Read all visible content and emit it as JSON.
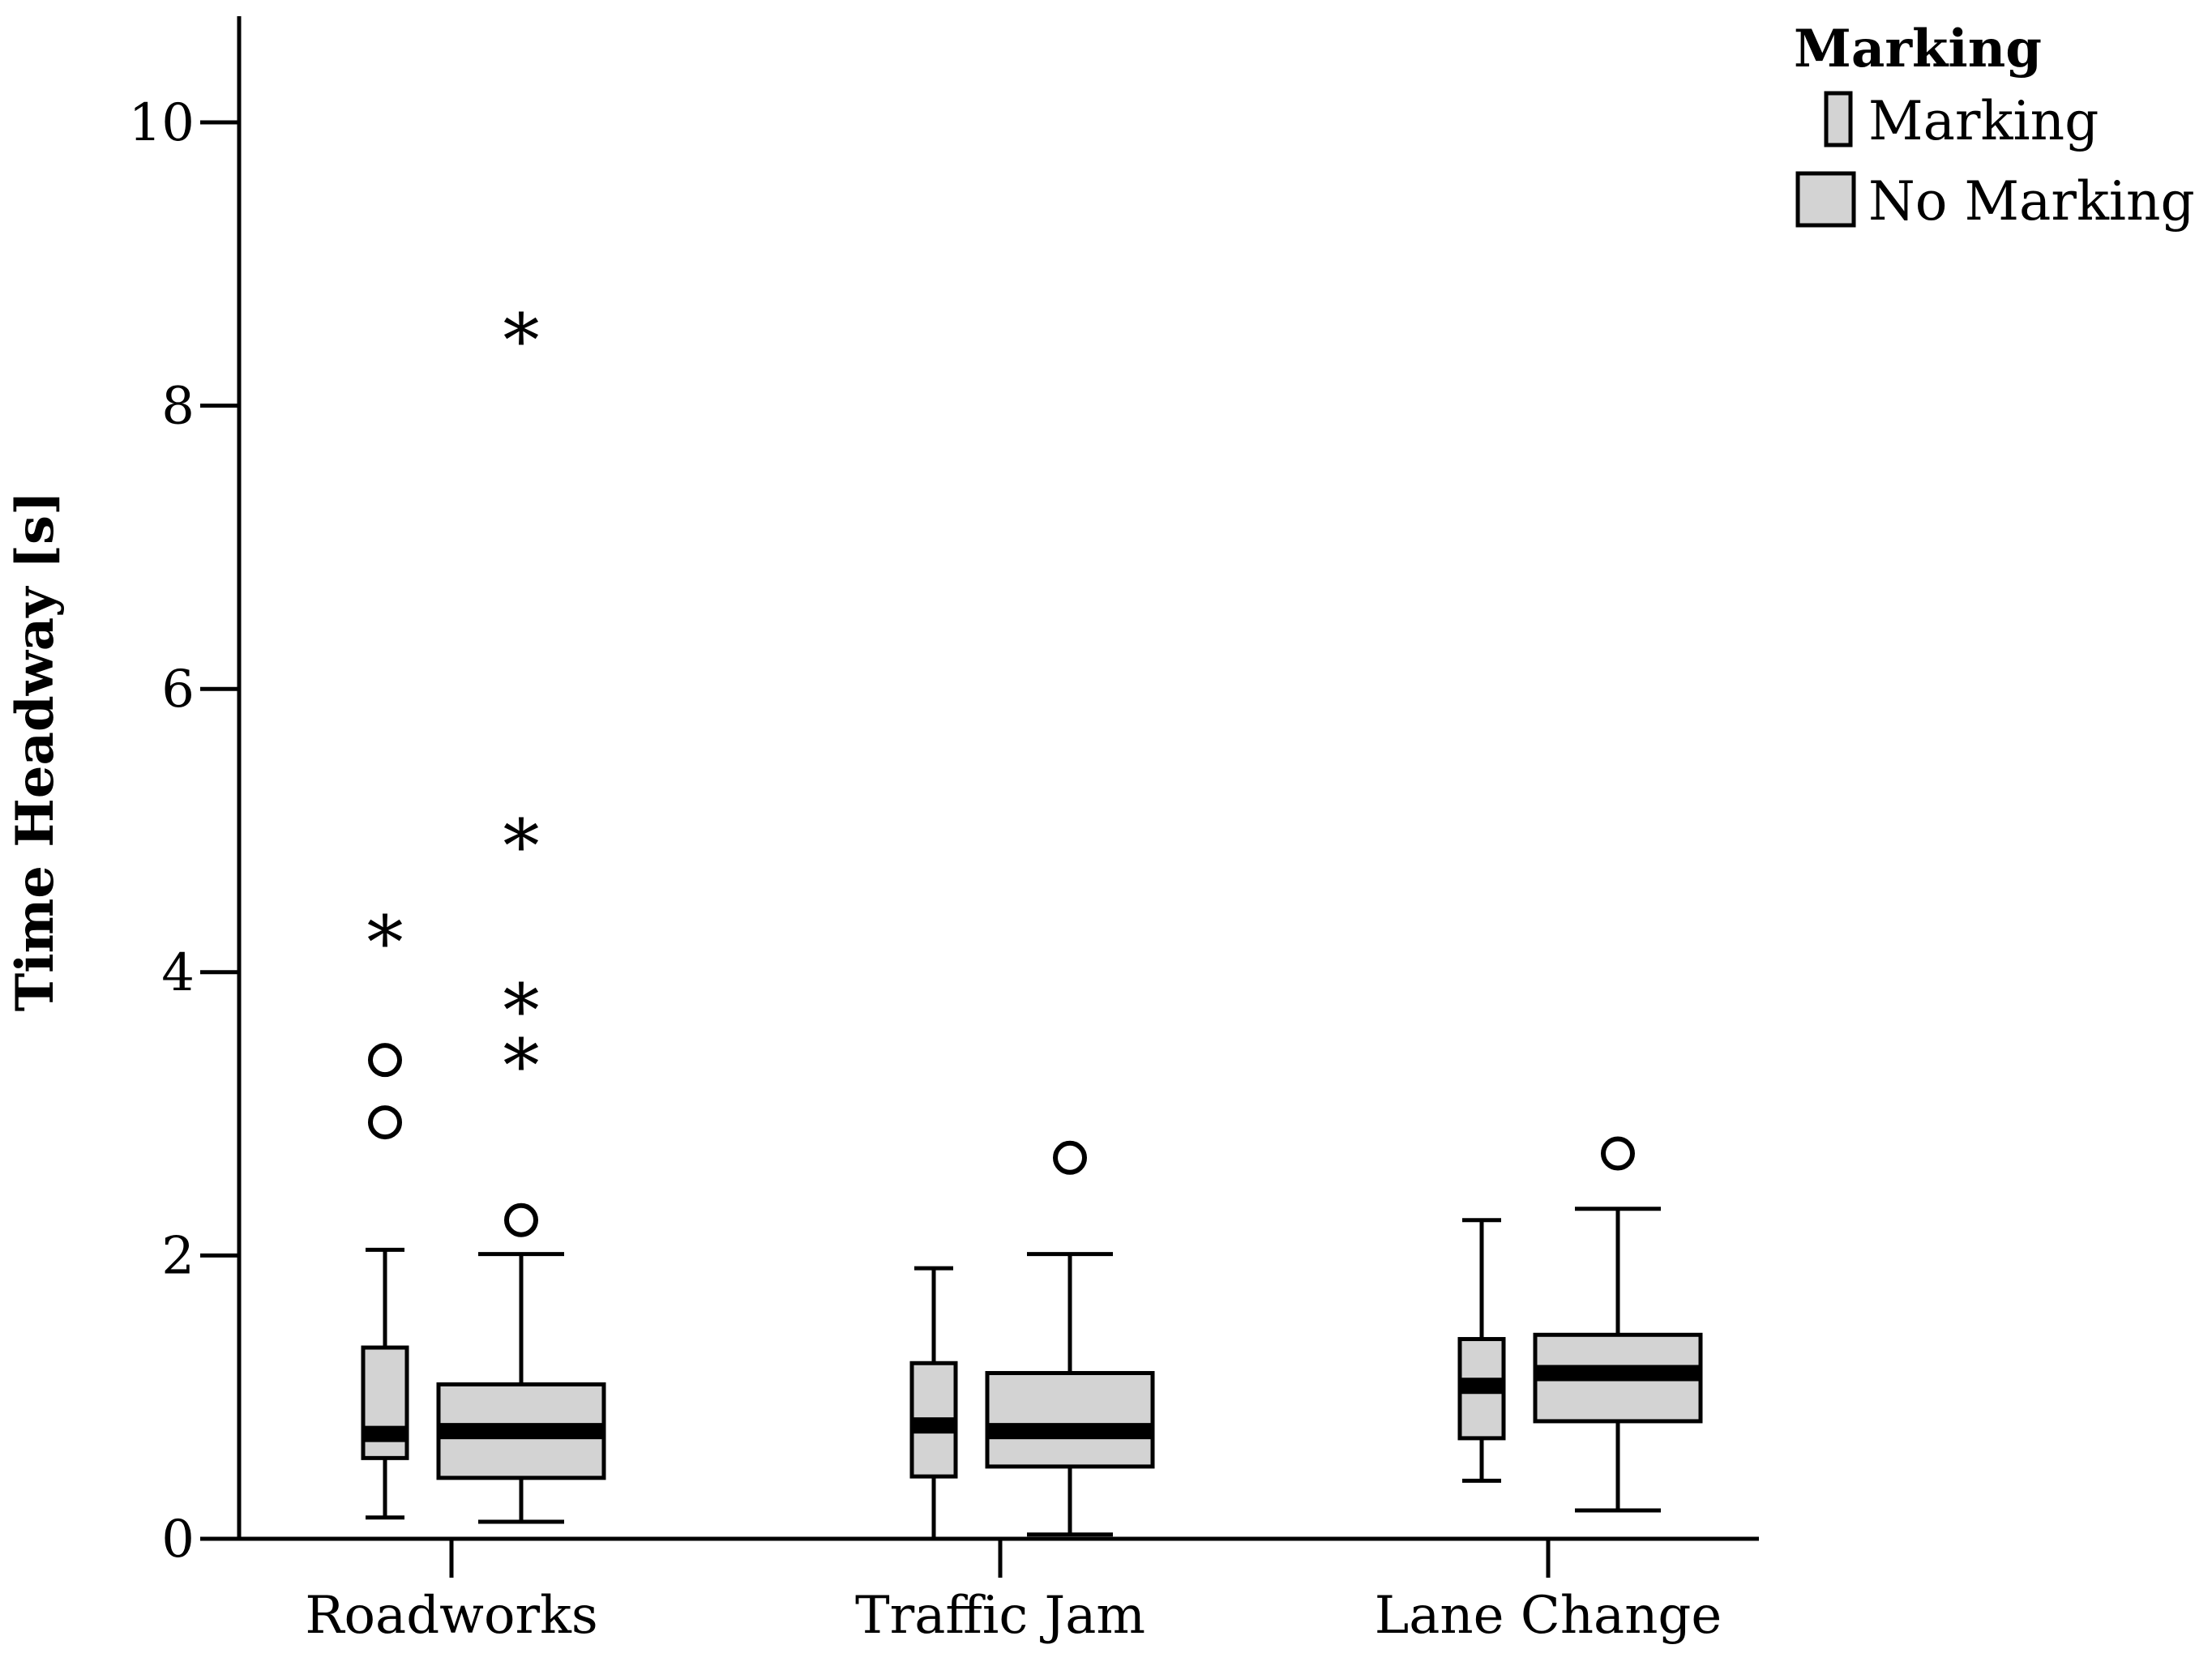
{
  "chart_data": {
    "type": "boxplot",
    "ylabel": "Time Headway [s]",
    "xlabel": "",
    "ylim": [
      0,
      10.7
    ],
    "yticks": [
      0,
      2,
      4,
      6,
      8,
      10
    ],
    "grid": false,
    "legend_placement": "top-right",
    "legend_title": "Marking",
    "categories": [
      "Roadworks",
      "Traffic Jam",
      "Lane Change"
    ],
    "series": [
      {
        "name": "Marking",
        "color": "#d3d3d3",
        "boxes": [
          {
            "whisker_low": 0.15,
            "q1": 0.57,
            "median": 0.74,
            "q3": 1.35,
            "whisker_high": 2.04,
            "outliers": [
              2.94,
              3.38
            ],
            "extremes": [
              4.27
            ]
          },
          {
            "whisker_low": 0.0,
            "q1": 0.44,
            "median": 0.8,
            "q3": 1.24,
            "whisker_high": 1.91,
            "outliers": [],
            "extremes": []
          },
          {
            "whisker_low": 0.41,
            "q1": 0.71,
            "median": 1.08,
            "q3": 1.41,
            "whisker_high": 2.25,
            "outliers": [],
            "extremes": []
          }
        ]
      },
      {
        "name": "No Marking",
        "color": "#d3d3d3",
        "boxes": [
          {
            "whisker_low": 0.12,
            "q1": 0.43,
            "median": 0.76,
            "q3": 1.09,
            "whisker_high": 2.01,
            "outliers": [
              2.25
            ],
            "extremes": [
              3.4,
              3.79,
              4.95,
              8.52
            ]
          },
          {
            "whisker_low": 0.03,
            "q1": 0.51,
            "median": 0.76,
            "q3": 1.17,
            "whisker_high": 2.01,
            "outliers": [
              2.69
            ],
            "extremes": []
          },
          {
            "whisker_low": 0.2,
            "q1": 0.83,
            "median": 1.17,
            "q3": 1.44,
            "whisker_high": 2.33,
            "outliers": [
              2.72
            ],
            "extremes": []
          }
        ]
      }
    ]
  }
}
